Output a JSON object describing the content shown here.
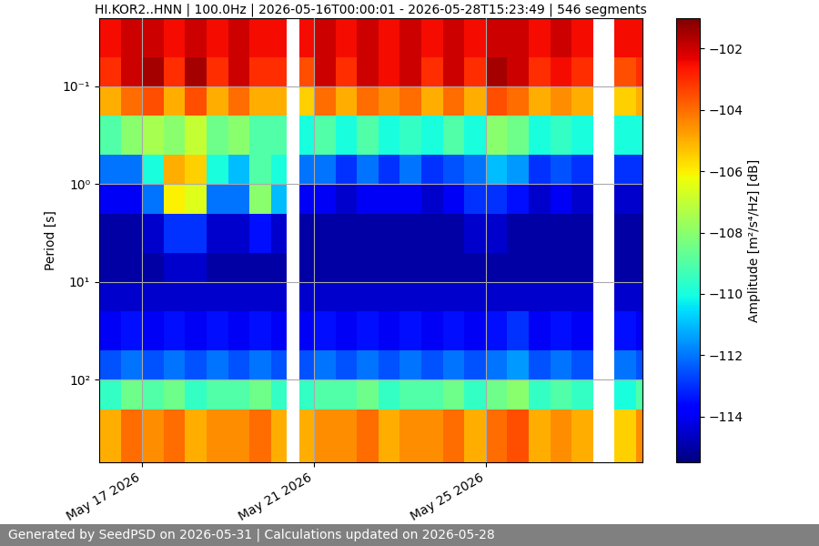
{
  "chart_data": {
    "type": "heatmap",
    "title": "HI.KOR2..HNN | 100.0Hz | 2026-05-16T00:00:01 - 2026-05-28T15:23:49 | 546 segments",
    "y_label": "Period [s]",
    "footer": "Generated by SeedPSD on 2026-05-31 | Calculations updated on 2026-05-28",
    "log": "y",
    "grid": true,
    "xlim": [
      "2026-05-16T00:00:01",
      "2026-05-28T15:23:49"
    ],
    "xticks": [
      {
        "value": "2026-05-17T00:00:00",
        "label": "May 17 2026"
      },
      {
        "value": "2026-05-21T00:00:00",
        "label": "May 21 2026"
      },
      {
        "value": "2026-05-25T00:00:00",
        "label": "May 25 2026"
      }
    ],
    "ylim": [
      700,
      0.02
    ],
    "yticks": [
      {
        "value": 0.1,
        "label": "10⁻¹"
      },
      {
        "value": 1,
        "label": "10⁰"
      },
      {
        "value": 10,
        "label": "10¹"
      },
      {
        "value": 100,
        "label": "10²"
      }
    ],
    "x_edges": [
      "2026-05-16T00:00:01",
      "2026-05-16T12:00:00",
      "2026-05-17T00:00:00",
      "2026-05-17T12:00:00",
      "2026-05-18T00:00:00",
      "2026-05-18T12:00:00",
      "2026-05-19T00:00:00",
      "2026-05-19T12:00:00",
      "2026-05-20T00:00:00",
      "2026-05-20T09:00:00",
      "2026-05-20T16:00:00",
      "2026-05-21T00:00:00",
      "2026-05-21T12:00:00",
      "2026-05-22T00:00:00",
      "2026-05-22T12:00:00",
      "2026-05-23T00:00:00",
      "2026-05-23T12:00:00",
      "2026-05-24T00:00:00",
      "2026-05-24T12:00:00",
      "2026-05-25T00:00:00",
      "2026-05-25T12:00:00",
      "2026-05-26T00:00:00",
      "2026-05-26T12:00:00",
      "2026-05-27T00:00:00",
      "2026-05-27T12:00:00",
      "2026-05-28T00:00:00",
      "2026-05-28T12:00:00",
      "2026-05-28T15:23:49"
    ],
    "y_edges": [
      0.02,
      0.05,
      0.1,
      0.2,
      0.5,
      1,
      2,
      5,
      10,
      20,
      50,
      100,
      200,
      700
    ],
    "cells": [
      [
        -102.5,
        -102,
        -102,
        -102.5,
        -102,
        -102.5,
        -102,
        -102.5,
        -102.5,
        null,
        -102.5,
        -102,
        -102.5,
        -102,
        -102.5,
        -102,
        -102.5,
        -102,
        -102.5,
        -102,
        -102,
        -102.5,
        -102,
        -102.5,
        null,
        -102.5,
        -102.5
      ],
      [
        -103,
        -102,
        -101.5,
        -103,
        -101.5,
        -103,
        -102,
        -103,
        -103,
        null,
        -103.5,
        -102,
        -103,
        -102,
        -102.5,
        -102,
        -103,
        -102,
        -103,
        -101.5,
        -102,
        -103,
        -102.5,
        -103,
        null,
        -103.5,
        -103
      ],
      [
        -105,
        -104,
        -103.5,
        -105,
        -103.5,
        -105,
        -104,
        -105,
        -105,
        null,
        -105.5,
        -104,
        -105,
        -104,
        -104.5,
        -104,
        -105,
        -104,
        -105,
        -103.5,
        -104,
        -105,
        -104.5,
        -105,
        null,
        -105.5,
        -105
      ],
      [
        -109,
        -108,
        -107.5,
        -108,
        -107,
        -108.5,
        -108,
        -109,
        -109,
        null,
        -110,
        -109,
        -110,
        -109,
        -110,
        -109.5,
        -110,
        -109,
        -110,
        -108,
        -108.5,
        -110,
        -109.5,
        -110,
        null,
        -110,
        -110
      ],
      [
        -112,
        -112,
        -110,
        -105,
        -105.5,
        -110,
        -111,
        -109,
        -110,
        null,
        -112,
        -112,
        -113,
        -112,
        -113,
        -112,
        -113,
        -112.5,
        -112,
        -111,
        -111.5,
        -113,
        -112.5,
        -113,
        null,
        -113,
        -113
      ],
      [
        -114,
        -114,
        -112,
        -106,
        -106.5,
        -112,
        -112,
        -108,
        -111,
        null,
        -114,
        -114,
        -114.5,
        -114,
        -114,
        -114,
        -114.5,
        -114,
        -113,
        -113,
        -113.5,
        -114.5,
        -114,
        -114.5,
        null,
        -114.5,
        -114.5
      ],
      [
        -115,
        -115,
        -114.5,
        -113,
        -113,
        -114.5,
        -114.5,
        -113.5,
        -114.5,
        null,
        -115,
        -115,
        -115,
        -115,
        -115,
        -115,
        -115,
        -115,
        -114.5,
        -114.5,
        -115,
        -115,
        -115,
        -115,
        null,
        -115,
        -115
      ],
      [
        -115,
        -115,
        -115,
        -114.5,
        -114.5,
        -115,
        -115,
        -115,
        -115,
        null,
        -115,
        -115,
        -115,
        -115,
        -115,
        -115,
        -115,
        -115,
        -115,
        -115,
        -115,
        -115,
        -115,
        -115,
        null,
        -115,
        -115
      ],
      [
        -114.5,
        -114.5,
        -114.5,
        -114.5,
        -114.5,
        -114.5,
        -114.5,
        -114.5,
        -114.5,
        null,
        -114.5,
        -114.5,
        -114.5,
        -114.5,
        -114.5,
        -114.5,
        -114.5,
        -114.5,
        -114.5,
        -114.5,
        -114.5,
        -114.5,
        -114.5,
        -114.5,
        null,
        -114.5,
        -114.5
      ],
      [
        -114,
        -113.5,
        -114,
        -113.5,
        -114,
        -113.5,
        -114,
        -113.5,
        -114,
        null,
        -114,
        -113.5,
        -114,
        -113.5,
        -114,
        -113.5,
        -114,
        -113.5,
        -114,
        -113.5,
        -113,
        -114,
        -113.5,
        -114,
        null,
        -113.5,
        -114
      ],
      [
        -112.5,
        -112,
        -112.5,
        -112,
        -112.5,
        -112,
        -112.5,
        -112,
        -112.5,
        null,
        -112.5,
        -112,
        -112.5,
        -112,
        -112.5,
        -112,
        -112.5,
        -112,
        -112.5,
        -112,
        -111.5,
        -112.5,
        -112,
        -112.5,
        null,
        -112,
        -112.5
      ],
      [
        -109.5,
        -108.5,
        -109,
        -108.5,
        -109.5,
        -109,
        -109,
        -108.5,
        -109.5,
        null,
        -109.5,
        -109,
        -109,
        -108.5,
        -109.5,
        -109,
        -109,
        -108.5,
        -109.5,
        -108.5,
        -108,
        -109.5,
        -109,
        -109.5,
        null,
        -110,
        -109
      ],
      [
        -105,
        -104,
        -104.5,
        -104,
        -105,
        -104.5,
        -104.5,
        -104,
        -105,
        null,
        -105,
        -104.5,
        -104.5,
        -104,
        -105,
        -104.5,
        -104.5,
        -104,
        -105,
        -104,
        -103.5,
        -105,
        -104.5,
        -105,
        null,
        -105.5,
        -104.5
      ]
    ],
    "colorbar": {
      "label": "Amplitude [m²/s⁴/Hz] [dB]",
      "range": [
        -115.5,
        -101
      ],
      "ticks": [
        {
          "value": -114,
          "label": "−114"
        },
        {
          "value": -112,
          "label": "−112"
        },
        {
          "value": -110,
          "label": "−110"
        },
        {
          "value": -108,
          "label": "−108"
        },
        {
          "value": -106,
          "label": "−106"
        },
        {
          "value": -104,
          "label": "−104"
        },
        {
          "value": -102,
          "label": "−102"
        }
      ]
    }
  }
}
